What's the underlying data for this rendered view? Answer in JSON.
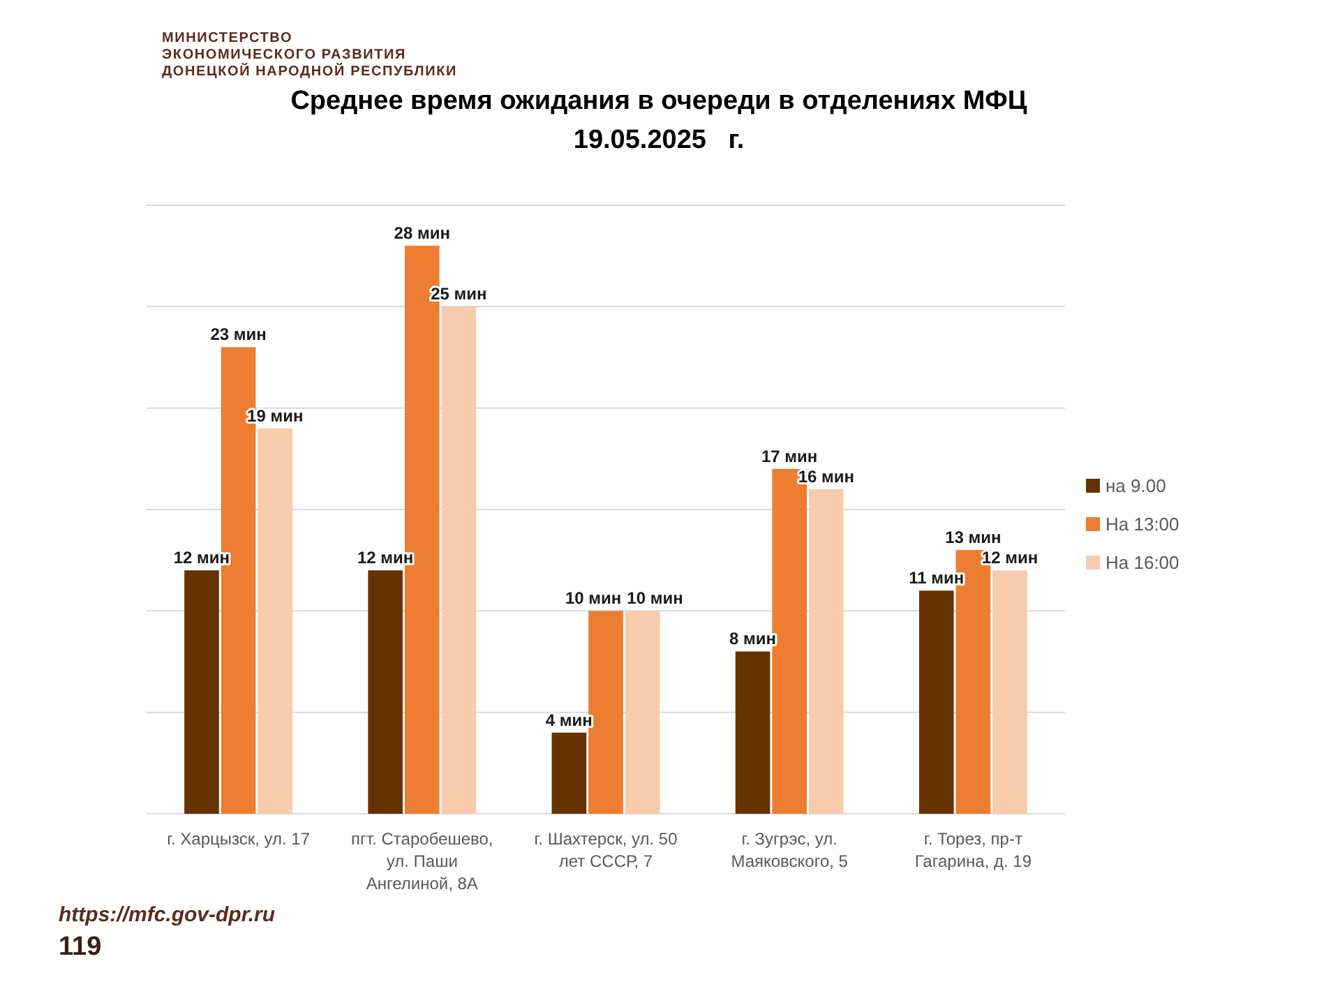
{
  "chart_data": {
    "type": "bar",
    "title": "Среднее время ожидания в очереди в отделениях МФЦ\n19.05.2025   г.",
    "annotations": [
      "МИНИСТЕРСТВО\nЭКОНОМИЧЕСКОГО РАЗВИТИЯ\nДОНЕЦКОЙ НАРОДНОЙ РЕСПУБЛИКИ",
      "https://mfc.gov-dpr.ru",
      "119"
    ],
    "categories": [
      "г. Харцызск, ул. 17",
      "пгт. Старобешево, ул. Паши Ангелиной, 8А",
      "г. Шахтерск, ул. 50 лет СССР, 7",
      "г. Зугрэс, ул. Маяковского, 5",
      "г. Торез, пр-т Гагарина, д. 19"
    ],
    "series": [
      {
        "name": "на 9.00",
        "color": "#663300",
        "values": [
          12,
          12,
          4,
          8,
          11
        ],
        "value_labels": [
          "12 мин",
          "12 мин",
          "4 мин",
          "8 мин",
          "11 мин"
        ]
      },
      {
        "name": "На 13:00",
        "color": "#ed7d31",
        "values": [
          23,
          28,
          10,
          17,
          13
        ],
        "value_labels": [
          "23 мин",
          "28 мин",
          "10 мин",
          "17 мин",
          "13 мин"
        ]
      },
      {
        "name": "На 16:00",
        "color": "#f8cbad",
        "values": [
          19,
          25,
          10,
          16,
          12
        ],
        "value_labels": [
          "19 мин",
          "25 мин",
          "10 мин",
          "16 мин",
          "12 мин"
        ]
      }
    ],
    "ylim": [
      0,
      30
    ],
    "yticks": [
      0,
      5,
      10,
      15,
      20,
      25,
      30
    ],
    "tick_labels": "x",
    "grid": "y",
    "legend": "right"
  }
}
